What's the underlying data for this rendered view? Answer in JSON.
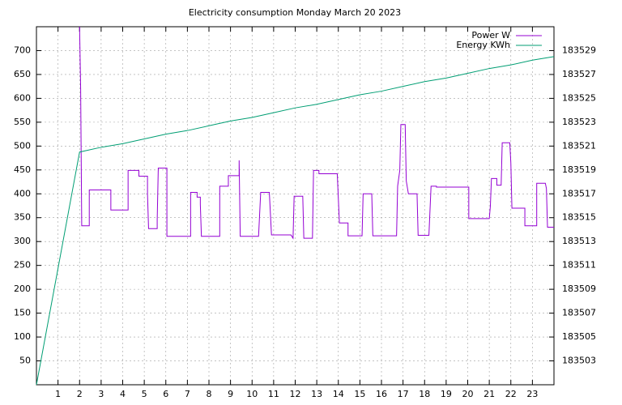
{
  "chart_data": {
    "type": "line",
    "title": "Electricity consumption Monday March 20 2023",
    "xlim": [
      0,
      24
    ],
    "xticks": [
      1,
      2,
      3,
      4,
      5,
      6,
      7,
      8,
      9,
      10,
      11,
      12,
      13,
      14,
      15,
      16,
      17,
      18,
      19,
      20,
      21,
      22,
      23
    ],
    "ylim": [
      0,
      750
    ],
    "yticks": [
      50,
      100,
      150,
      200,
      250,
      300,
      350,
      400,
      450,
      500,
      550,
      600,
      650,
      700
    ],
    "y2lim": [
      183501,
      183531
    ],
    "y2ticks": [
      183503,
      183505,
      183507,
      183509,
      183511,
      183513,
      183515,
      183517,
      183519,
      183521,
      183523,
      183525,
      183527,
      183529
    ],
    "grid": true,
    "legend": "top-right",
    "series": [
      {
        "name": "Power W",
        "color": "#9400d3",
        "x": [
          2.0,
          2.05,
          2.1,
          2.45,
          2.45,
          3.45,
          3.45,
          4.25,
          4.25,
          4.75,
          4.75,
          5.15,
          5.15,
          5.2,
          5.6,
          5.6,
          5.65,
          6.05,
          6.05,
          7.15,
          7.15,
          7.45,
          7.45,
          7.6,
          7.6,
          7.65,
          8.5,
          8.5,
          8.9,
          8.9,
          9.4,
          9.4,
          9.45,
          10.3,
          10.4,
          10.8,
          10.9,
          11.8,
          11.9,
          11.95,
          12.35,
          12.4,
          12.8,
          12.85,
          13.1,
          13.1,
          13.95,
          14.05,
          14.45,
          14.45,
          15.1,
          15.15,
          15.55,
          15.6,
          16.7,
          16.75,
          16.85,
          16.9,
          17.1,
          17.15,
          17.25,
          17.65,
          17.7,
          18.2,
          18.3,
          18.55,
          18.55,
          20.05,
          20.05,
          21.0,
          21.05,
          21.1,
          21.35,
          21.35,
          21.55,
          21.6,
          21.95,
          22.0,
          22.05,
          22.65,
          22.65,
          23.2,
          23.2,
          23.6,
          23.65,
          23.7,
          24.0
        ],
        "values": [
          750,
          620,
          333,
          333,
          408,
          408,
          366,
          366,
          449,
          449,
          437,
          437,
          400,
          327,
          327,
          345,
          454,
          454,
          311,
          311,
          403,
          403,
          393,
          393,
          378,
          311,
          311,
          416,
          416,
          438,
          438,
          470,
          311,
          311,
          403,
          403,
          314,
          314,
          307,
          395,
          395,
          307,
          307,
          449,
          449,
          442,
          442,
          339,
          339,
          312,
          312,
          400,
          400,
          312,
          312,
          416,
          449,
          545,
          545,
          427,
          400,
          400,
          313,
          313,
          416,
          416,
          414,
          414,
          348,
          348,
          374,
          432,
          432,
          418,
          418,
          507,
          507,
          465,
          370,
          370,
          333,
          333,
          422,
          422,
          411,
          330,
          330
        ]
      },
      {
        "name": "Energy KWh",
        "color": "#009e73",
        "axis": "y2",
        "x": [
          0,
          2,
          3,
          4,
          5,
          6,
          7,
          8,
          9,
          10,
          11,
          12,
          13,
          14,
          15,
          16,
          17,
          18,
          19,
          20,
          21,
          22,
          23,
          24
        ],
        "values": [
          183501,
          183520.5,
          183520.9,
          183521.2,
          183521.6,
          183522.0,
          183522.3,
          183522.7,
          183523.1,
          183523.4,
          183523.8,
          183524.2,
          183524.5,
          183524.9,
          183525.3,
          183525.6,
          183526.0,
          183526.4,
          183526.7,
          183527.1,
          183527.5,
          183527.8,
          183528.2,
          183528.5
        ]
      }
    ]
  }
}
